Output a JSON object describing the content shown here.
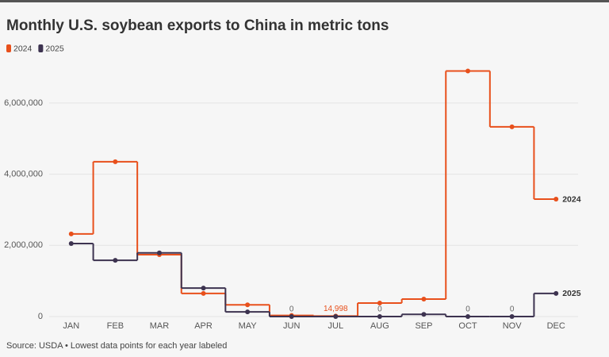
{
  "chart_data": {
    "type": "step",
    "title": "Monthly U.S. soybean exports to China in metric tons",
    "source": "Source: USDA • Lowest data points for each year labeled",
    "categories": [
      "JAN",
      "FEB",
      "MAR",
      "APR",
      "MAY",
      "JUN",
      "JUL",
      "AUG",
      "SEP",
      "OCT",
      "NOV",
      "DEC"
    ],
    "series": [
      {
        "name": "2024",
        "color": "#e8501c",
        "values": [
          2320000,
          4350000,
          1740000,
          650000,
          330000,
          30000,
          14998,
          380000,
          490000,
          6900000,
          5330000,
          3300000
        ],
        "value_labels": [
          null,
          null,
          null,
          null,
          null,
          null,
          "14,998",
          null,
          null,
          null,
          null,
          null
        ]
      },
      {
        "name": "2025",
        "color": "#3d3350",
        "values": [
          2050000,
          1580000,
          1790000,
          800000,
          130000,
          0,
          0,
          0,
          60000,
          0,
          0,
          650000
        ],
        "value_labels": [
          null,
          null,
          null,
          null,
          null,
          "0",
          null,
          "0",
          null,
          "0",
          "0",
          null
        ]
      }
    ],
    "ylim": [
      0,
      7000000
    ],
    "yticks": [
      0,
      {
        "value": 2000000,
        "label": "2,000,000"
      },
      {
        "value": 4000000,
        "label": "4,000,000"
      },
      {
        "value": 6000000,
        "label": "6,000,000"
      }
    ],
    "grid": true
  }
}
